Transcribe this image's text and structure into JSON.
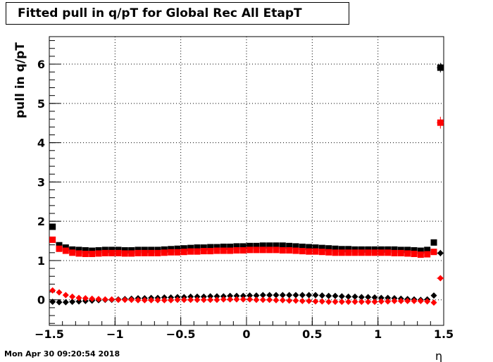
{
  "title": "Fitted pull in q/pT for Global Rec All EtapT",
  "footer": "Mon Apr 30 09:20:54 2018",
  "chart_data": {
    "type": "scatter",
    "title": "Fitted pull in q/pT for Global Rec All EtapT",
    "xlabel": "η",
    "ylabel": "pull in q/pT",
    "xlim": [
      -1.5,
      1.5
    ],
    "ylim": [
      -0.65,
      6.7
    ],
    "xticks": [
      "−1.5",
      "−1",
      "−0.5",
      "0",
      "0.5",
      "1",
      "1.5"
    ],
    "xtick_values": [
      -1.5,
      -1,
      -0.5,
      0,
      0.5,
      1,
      1.5
    ],
    "yticks": [
      "0",
      "1",
      "2",
      "3",
      "4",
      "5",
      "6"
    ],
    "ytick_values": [
      0,
      1,
      2,
      3,
      4,
      5,
      6
    ],
    "grid": true,
    "x": [
      -1.475,
      -1.425,
      -1.375,
      -1.325,
      -1.275,
      -1.225,
      -1.175,
      -1.125,
      -1.075,
      -1.025,
      -0.975,
      -0.925,
      -0.875,
      -0.825,
      -0.775,
      -0.725,
      -0.675,
      -0.625,
      -0.575,
      -0.525,
      -0.475,
      -0.425,
      -0.375,
      -0.325,
      -0.275,
      -0.225,
      -0.175,
      -0.125,
      -0.075,
      -0.025,
      0.025,
      0.075,
      0.125,
      0.175,
      0.225,
      0.275,
      0.325,
      0.375,
      0.425,
      0.475,
      0.525,
      0.575,
      0.625,
      0.675,
      0.725,
      0.775,
      0.825,
      0.875,
      0.925,
      0.975,
      1.025,
      1.075,
      1.125,
      1.175,
      1.225,
      1.275,
      1.325,
      1.375,
      1.425,
      1.475
    ],
    "series": [
      {
        "marker": "square",
        "color": "#000000",
        "values": [
          1.86,
          1.39,
          1.33,
          1.28,
          1.27,
          1.26,
          1.25,
          1.26,
          1.27,
          1.27,
          1.27,
          1.26,
          1.26,
          1.27,
          1.27,
          1.27,
          1.27,
          1.28,
          1.29,
          1.3,
          1.31,
          1.32,
          1.33,
          1.33,
          1.34,
          1.34,
          1.35,
          1.35,
          1.36,
          1.36,
          1.37,
          1.37,
          1.38,
          1.38,
          1.38,
          1.38,
          1.37,
          1.36,
          1.35,
          1.34,
          1.33,
          1.32,
          1.31,
          1.3,
          1.29,
          1.29,
          1.28,
          1.28,
          1.28,
          1.28,
          1.28,
          1.28,
          1.28,
          1.27,
          1.27,
          1.26,
          1.25,
          1.27,
          1.46,
          5.91
        ]
      },
      {
        "marker": "square",
        "color": "#ff0000",
        "values": [
          1.53,
          1.3,
          1.25,
          1.2,
          1.18,
          1.17,
          1.17,
          1.18,
          1.19,
          1.19,
          1.19,
          1.18,
          1.18,
          1.19,
          1.19,
          1.19,
          1.19,
          1.2,
          1.21,
          1.21,
          1.22,
          1.23,
          1.23,
          1.24,
          1.24,
          1.25,
          1.25,
          1.25,
          1.26,
          1.26,
          1.27,
          1.27,
          1.27,
          1.27,
          1.27,
          1.26,
          1.26,
          1.25,
          1.24,
          1.23,
          1.23,
          1.22,
          1.21,
          1.2,
          1.2,
          1.2,
          1.2,
          1.2,
          1.2,
          1.2,
          1.2,
          1.2,
          1.19,
          1.19,
          1.18,
          1.17,
          1.15,
          1.16,
          1.22,
          4.51
        ]
      },
      {
        "marker": "diamond",
        "color": "#000000",
        "values": [
          -0.05,
          -0.06,
          -0.06,
          -0.05,
          -0.04,
          -0.03,
          -0.02,
          -0.01,
          0.0,
          0.0,
          0.01,
          0.02,
          0.03,
          0.04,
          0.04,
          0.05,
          0.05,
          0.06,
          0.06,
          0.07,
          0.07,
          0.08,
          0.08,
          0.08,
          0.09,
          0.09,
          0.09,
          0.1,
          0.1,
          0.1,
          0.11,
          0.11,
          0.12,
          0.12,
          0.12,
          0.12,
          0.12,
          0.12,
          0.12,
          0.12,
          0.12,
          0.11,
          0.1,
          0.1,
          0.09,
          0.08,
          0.08,
          0.07,
          0.07,
          0.06,
          0.05,
          0.05,
          0.04,
          0.03,
          0.02,
          0.01,
          0.0,
          0.01,
          0.11,
          1.19
        ]
      },
      {
        "marker": "diamond",
        "color": "#ff0000",
        "values": [
          0.24,
          0.19,
          0.12,
          0.08,
          0.05,
          0.04,
          0.03,
          0.02,
          0.01,
          0.01,
          0.0,
          0.0,
          0.0,
          -0.01,
          -0.01,
          -0.01,
          -0.01,
          -0.01,
          -0.01,
          0.0,
          0.0,
          0.0,
          0.0,
          0.0,
          0.0,
          0.0,
          0.01,
          0.01,
          0.01,
          0.01,
          0.01,
          0.0,
          0.0,
          0.0,
          -0.01,
          -0.01,
          -0.02,
          -0.02,
          -0.03,
          -0.03,
          -0.04,
          -0.04,
          -0.05,
          -0.05,
          -0.05,
          -0.05,
          -0.05,
          -0.05,
          -0.05,
          -0.05,
          -0.04,
          -0.04,
          -0.03,
          -0.03,
          -0.03,
          -0.03,
          -0.03,
          -0.04,
          -0.07,
          0.55
        ]
      }
    ],
    "error_bars": [
      {
        "series": 0,
        "index": 59,
        "err": 0.12
      },
      {
        "series": 1,
        "index": 59,
        "err": 0.15
      },
      {
        "series": 2,
        "index": 59,
        "err": 0.08
      },
      {
        "series": 3,
        "index": 59,
        "err": 0.06
      }
    ]
  }
}
